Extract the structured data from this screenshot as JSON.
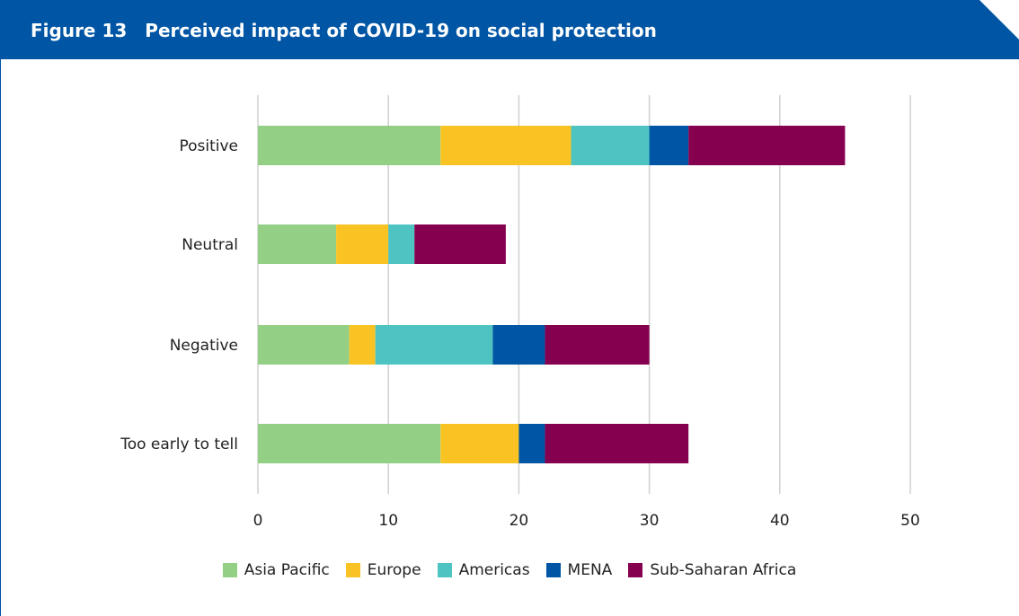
{
  "figure": {
    "label": "Figure 13",
    "title": "Perceived impact of COVID-19 on social protection"
  },
  "colors": {
    "banner": "#0055a4",
    "grid": "#d0d0d0",
    "series": [
      "#94cf86",
      "#f9c423",
      "#4dc4c2",
      "#0055a4",
      "#85004f"
    ]
  },
  "chart_data": {
    "type": "bar",
    "orientation": "horizontal",
    "stacked": true,
    "categories": [
      "Positive",
      "Neutral",
      "Negative",
      "Too early to tell"
    ],
    "series": [
      {
        "name": "Asia Pacific",
        "values": [
          14,
          6,
          7,
          14
        ]
      },
      {
        "name": "Europe",
        "values": [
          10,
          4,
          2,
          6
        ]
      },
      {
        "name": "Americas",
        "values": [
          6,
          2,
          9,
          0
        ]
      },
      {
        "name": "MENA",
        "values": [
          3,
          0,
          4,
          2
        ]
      },
      {
        "name": "Sub-Saharan Africa",
        "values": [
          12,
          7,
          8,
          11
        ]
      }
    ],
    "xlim": [
      0,
      50
    ],
    "xticks": [
      "0",
      "10",
      "20",
      "30",
      "40",
      "50"
    ],
    "grid": true,
    "legend_position": "bottom",
    "title": "",
    "xlabel": "",
    "ylabel": ""
  }
}
